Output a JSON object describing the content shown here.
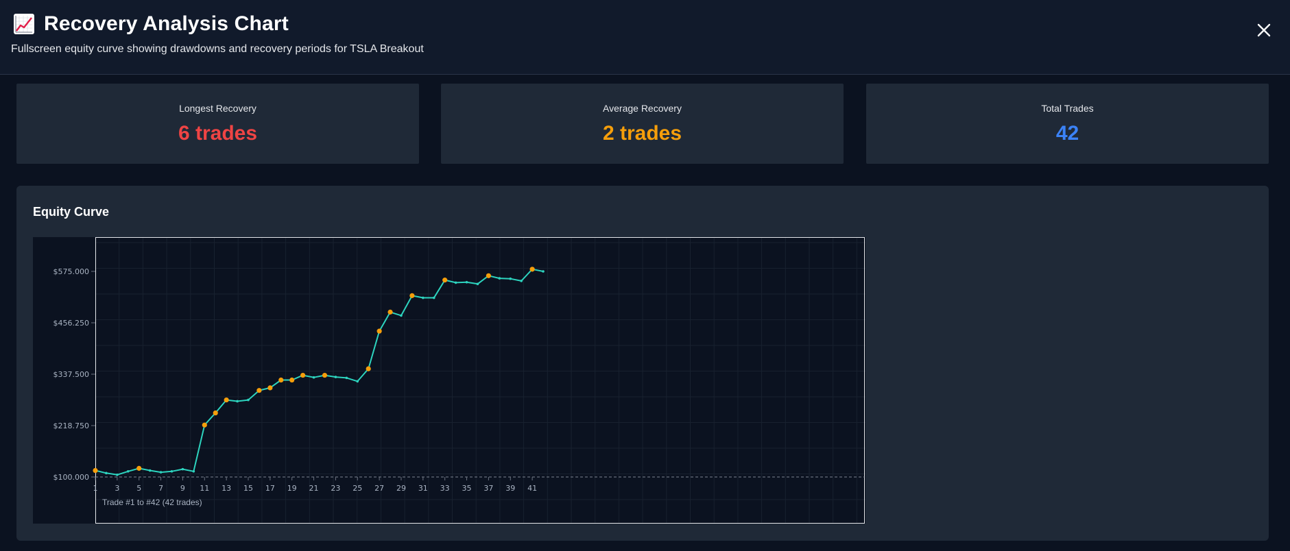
{
  "header": {
    "title": "Recovery Analysis Chart",
    "subtitle": "Fullscreen equity curve showing drawdowns and recovery periods for TSLA Breakout",
    "icon": "chart-increasing-icon",
    "close_icon": "close-icon"
  },
  "stats": [
    {
      "label": "Longest Recovery",
      "value": "6 trades",
      "color": "#ef4444"
    },
    {
      "label": "Average Recovery",
      "value": "2 trades",
      "color": "#f59e0b"
    },
    {
      "label": "Total Trades",
      "value": "42",
      "color": "#3b82f6"
    }
  ],
  "chart": {
    "title": "Equity Curve",
    "footer": "Trade #1 to #42 (42 trades)"
  },
  "colors": {
    "line": "#2dd4bf",
    "recovery_point": "#f59e0b",
    "baseline": "#9ca3af"
  },
  "chart_data": {
    "type": "line",
    "x": [
      1,
      2,
      3,
      4,
      5,
      6,
      7,
      8,
      9,
      10,
      11,
      12,
      13,
      14,
      15,
      16,
      17,
      18,
      19,
      20,
      21,
      22,
      23,
      24,
      25,
      26,
      27,
      28,
      29,
      30,
      31,
      32,
      33,
      34,
      35,
      36,
      37,
      38,
      39,
      40,
      41,
      42
    ],
    "series": [
      {
        "values": [
          115000,
          109000,
          105000,
          113000,
          120000,
          115000,
          111000,
          113000,
          118000,
          113000,
          220000,
          248000,
          278000,
          275000,
          278000,
          300000,
          306000,
          324000,
          324000,
          335000,
          330000,
          335000,
          331000,
          329000,
          321000,
          350000,
          437000,
          481000,
          473000,
          519000,
          514000,
          514000,
          555000,
          549000,
          550000,
          546000,
          565000,
          559000,
          558000,
          553000,
          580000,
          575000
        ]
      }
    ],
    "highlighted_indices": [
      0,
      4,
      10,
      11,
      12,
      15,
      16,
      17,
      18,
      19,
      21,
      25,
      26,
      27,
      29,
      32,
      36,
      40
    ],
    "xticks": [
      1,
      3,
      5,
      7,
      9,
      11,
      13,
      15,
      17,
      19,
      21,
      23,
      25,
      27,
      29,
      31,
      33,
      35,
      37,
      39,
      41
    ],
    "xticklabels": [
      "1",
      "3",
      "5",
      "7",
      "9",
      "11",
      "13",
      "15",
      "17",
      "19",
      "21",
      "23",
      "25",
      "27",
      "29",
      "31",
      "33",
      "35",
      "37",
      "39",
      "41"
    ],
    "yticks": [
      100000,
      218750,
      337500,
      456250,
      575000
    ],
    "yticklabels": [
      "$100.000",
      "$218.750",
      "$337.500",
      "$456.250",
      "$575.000"
    ],
    "xlim": [
      1,
      70
    ],
    "ylim": [
      100000,
      575000
    ],
    "baseline": 100000,
    "grid": true
  }
}
